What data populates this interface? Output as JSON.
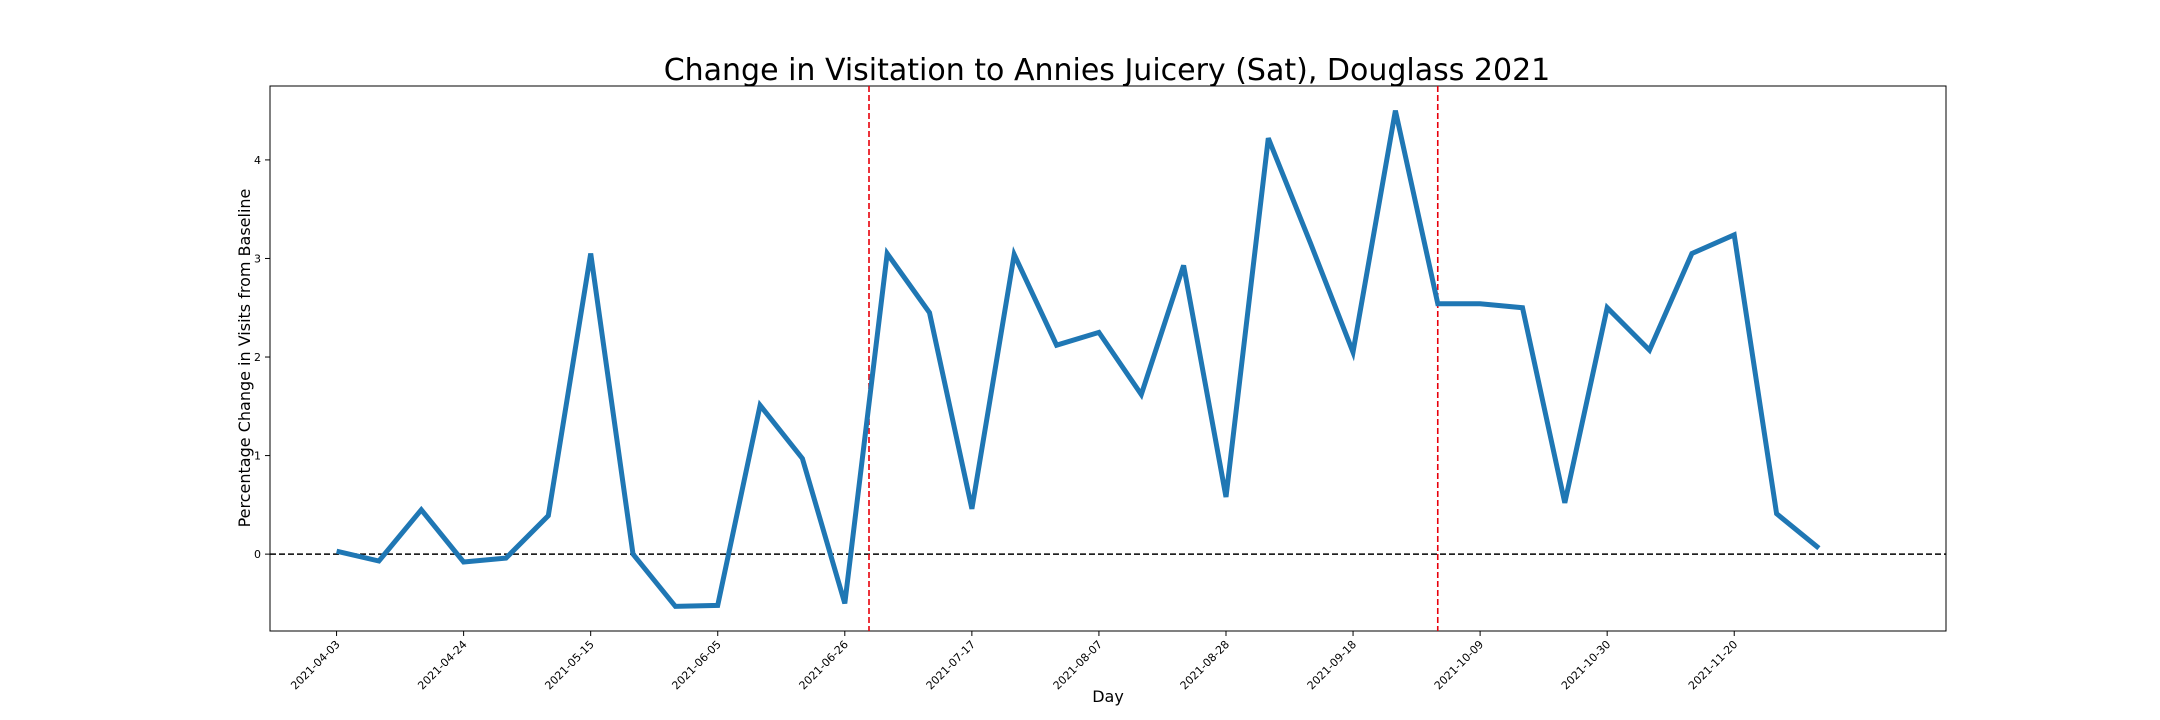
{
  "chart_data": {
    "type": "line",
    "title": "Change in Visitation to Annies Juicery (Sat), Douglass 2021",
    "xlabel": "Day",
    "ylabel": "Percentage Change in Visits from Baseline",
    "x_start": "2021-04-03",
    "x_step_days": 7,
    "xlim": [
      "2021-03-23",
      "2021-12-25"
    ],
    "ylim": [
      -0.78,
      4.75
    ],
    "x_ticks": [
      "2021-04-03",
      "2021-04-24",
      "2021-05-15",
      "2021-06-05",
      "2021-06-26",
      "2021-07-17",
      "2021-08-07",
      "2021-08-28",
      "2021-09-18",
      "2021-10-09",
      "2021-10-30",
      "2021-11-20"
    ],
    "y_ticks": [
      0,
      1,
      2,
      3,
      4
    ],
    "series": [
      {
        "name": "",
        "color": "#1f77b4",
        "values": [
          0.03,
          -0.07,
          0.45,
          -0.08,
          -0.04,
          0.39,
          3.05,
          0.0,
          -0.53,
          -0.52,
          1.51,
          0.97,
          -0.5,
          3.05,
          2.45,
          0.46,
          3.04,
          2.12,
          2.25,
          1.62,
          2.93,
          0.58,
          4.22,
          3.15,
          2.05,
          4.5,
          2.54,
          2.54,
          2.5,
          0.52,
          2.5,
          2.07,
          3.05,
          3.24,
          0.41,
          0.06
        ]
      }
    ],
    "reference_lines": [
      {
        "orientation": "horizontal",
        "value": 0,
        "color": "#000000",
        "style": "dashed"
      },
      {
        "orientation": "vertical",
        "value": "2021-06-30",
        "color": "#e8000b",
        "style": "dashed"
      },
      {
        "orientation": "vertical",
        "value": "2021-10-02",
        "color": "#e8000b",
        "style": "dashed"
      }
    ],
    "grid": false,
    "legend": "none"
  }
}
